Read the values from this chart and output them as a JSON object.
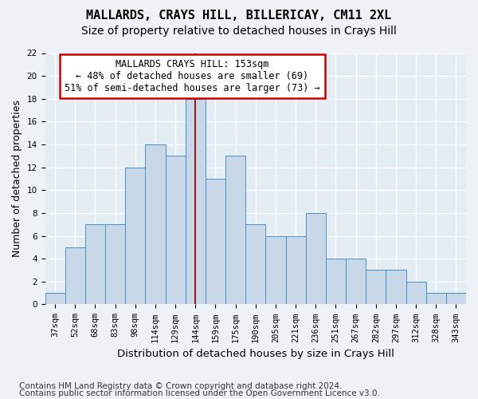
{
  "title": "MALLARDS, CRAYS HILL, BILLERICAY, CM11 2XL",
  "subtitle": "Size of property relative to detached houses in Crays Hill",
  "xlabel": "Distribution of detached houses by size in Crays Hill",
  "ylabel": "Number of detached properties",
  "categories": [
    "37sqm",
    "52sqm",
    "68sqm",
    "83sqm",
    "98sqm",
    "114sqm",
    "129sqm",
    "144sqm",
    "159sqm",
    "175sqm",
    "190sqm",
    "205sqm",
    "221sqm",
    "236sqm",
    "251sqm",
    "267sqm",
    "282sqm",
    "297sqm",
    "312sqm",
    "328sqm",
    "343sqm"
  ],
  "values": [
    1,
    5,
    7,
    7,
    12,
    14,
    13,
    18,
    11,
    13,
    7,
    6,
    6,
    8,
    4,
    4,
    3,
    3,
    2,
    1,
    1
  ],
  "bar_color": "#c8d8e8",
  "bar_edge_color": "#4a90c4",
  "ylim": [
    0,
    22
  ],
  "yticks": [
    0,
    2,
    4,
    6,
    8,
    10,
    12,
    14,
    16,
    18,
    20,
    22
  ],
  "marker_index": 7,
  "annotation_line1": "MALLARDS CRAYS HILL: 153sqm",
  "annotation_line2": "← 48% of detached houses are smaller (69)",
  "annotation_line3": "51% of semi-detached houses are larger (73) →",
  "footnote1": "Contains HM Land Registry data © Crown copyright and database right 2024.",
  "footnote2": "Contains public sector information licensed under the Open Government Licence v3.0.",
  "bg_color": "#eef2f7",
  "plot_bg_color": "#e4ecf4",
  "grid_color": "#ffffff",
  "title_fontsize": 11,
  "subtitle_fontsize": 10,
  "xlabel_fontsize": 9.5,
  "ylabel_fontsize": 9,
  "tick_fontsize": 7.5,
  "annotation_fontsize": 8.5,
  "footnote_fontsize": 7.5
}
